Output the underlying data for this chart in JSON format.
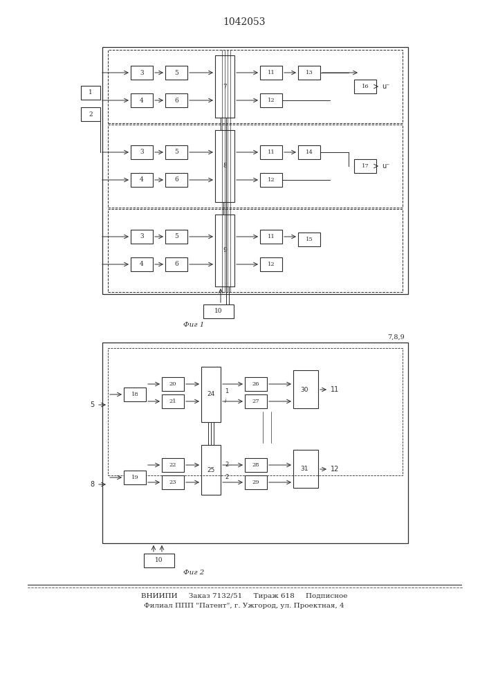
{
  "title": "1042053",
  "title_fontsize": 10,
  "background_color": "#ffffff",
  "line_color": "#2a2a2a",
  "box_color": "#ffffff",
  "fig1_caption": "Фиг 1",
  "fig2_caption": "Фиг 2",
  "footer_line1": "ВНИИПИ     Заказ 7132/51     Тираж 618     Подписное",
  "footer_line2": "Филиал ППП \"Патент\", г. Ужгород, ул. Проектная, 4",
  "fig2_label": "7,8,9",
  "u1_label": "u⁻",
  "u2_label": "u⁻"
}
